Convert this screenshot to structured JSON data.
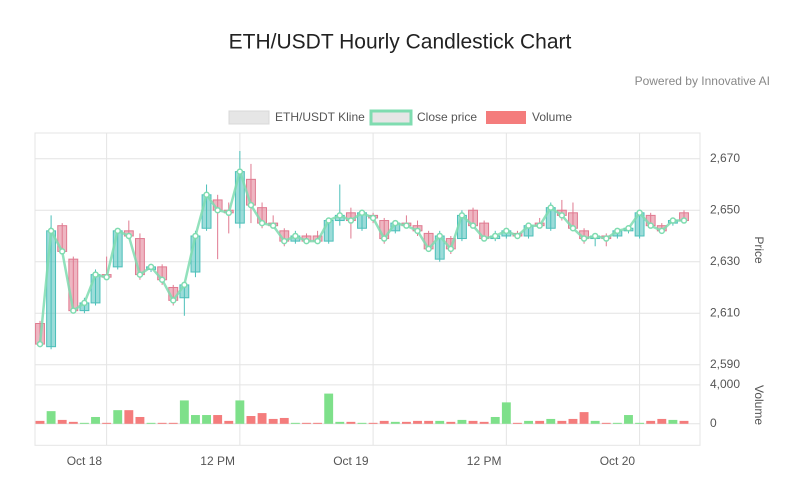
{
  "chart_data": {
    "type": "candlestick",
    "title": "ETH/USDT Hourly Candlestick Chart",
    "subtitle": "Powered by Innovative AI",
    "categories": [
      null,
      null,
      null,
      null,
      "Oct 18",
      null,
      null,
      null,
      null,
      null,
      null,
      null,
      null,
      null,
      null,
      null,
      "12 PM",
      null,
      null,
      null,
      null,
      null,
      null,
      null,
      null,
      null,
      null,
      null,
      "Oct 19",
      null,
      null,
      null,
      null,
      null,
      null,
      null,
      null,
      null,
      null,
      null,
      "12 PM",
      null,
      null,
      null,
      null,
      null,
      null,
      null,
      null,
      null,
      null,
      null,
      "Oct 20",
      null,
      null,
      null,
      null,
      null,
      null
    ],
    "ylim": [
      2586,
      2680
    ],
    "yticks": [
      {
        "value": 2590,
        "label": "2,590"
      },
      {
        "value": 2610,
        "label": "2,610"
      },
      {
        "value": 2630,
        "label": "2,630"
      },
      {
        "value": 2650,
        "label": "2,650"
      },
      {
        "value": 2670,
        "label": "2,670"
      }
    ],
    "ylabel": "Price",
    "y2lim": [
      -2000,
      4700
    ],
    "y2ticks": [
      0,
      {
        "value": 4000,
        "label": "4,000"
      }
    ],
    "y2label": "Volume",
    "grid": true,
    "series": [
      {
        "name": "ETH/USDT Kline",
        "up_color": "#4bbfb9",
        "down_color": "#e07a90",
        "open": [
          2606,
          2597,
          2644,
          2631,
          2611,
          2614,
          2625,
          2628,
          2642,
          2639,
          2627,
          2628,
          2620,
          2616,
          2626,
          2643,
          2654,
          2650,
          2645,
          2662,
          2651,
          2645,
          2642,
          2638,
          2640,
          2640,
          2638,
          2646,
          2649,
          2643,
          2648,
          2646,
          2642,
          2645,
          2644,
          2641,
          2631,
          2639,
          2639,
          2650,
          2645,
          2639,
          2640,
          2641,
          2640,
          2645,
          2643,
          2650,
          2649,
          2642,
          2639,
          2640,
          2640,
          2642,
          2640,
          2648,
          2644,
          2645,
          2649
        ],
        "close": [
          2598,
          2642,
          2634,
          2611,
          2614,
          2625,
          2624,
          2642,
          2640,
          2625,
          2628,
          2623,
          2615,
          2621,
          2640,
          2656,
          2650,
          2649,
          2665,
          2652,
          2645,
          2644,
          2638,
          2640,
          2638,
          2638,
          2646,
          2648,
          2646,
          2649,
          2647,
          2639,
          2645,
          2644,
          2642,
          2635,
          2640,
          2635,
          2648,
          2644,
          2639,
          2640,
          2642,
          2640,
          2644,
          2644,
          2651,
          2648,
          2643,
          2639,
          2640,
          2639,
          2642,
          2643,
          2649,
          2644,
          2642,
          2646,
          2646
        ],
        "high": [
          2607,
          2648,
          2645,
          2632,
          2616,
          2627,
          2632,
          2643,
          2646,
          2641,
          2629,
          2629,
          2621,
          2622,
          2642,
          2660,
          2656,
          2653,
          2673,
          2668,
          2653,
          2648,
          2643,
          2642,
          2641,
          2642,
          2647,
          2660,
          2651,
          2650,
          2649,
          2647,
          2646,
          2648,
          2646,
          2642,
          2642,
          2640,
          2650,
          2651,
          2646,
          2642,
          2643,
          2642,
          2645,
          2647,
          2653,
          2654,
          2653,
          2643,
          2641,
          2641,
          2643,
          2644,
          2650,
          2649,
          2645,
          2647,
          2650
        ],
        "low": [
          2597,
          2596,
          2633,
          2610,
          2610,
          2613,
          2623,
          2627,
          2639,
          2623,
          2626,
          2621,
          2613,
          2609,
          2624,
          2642,
          2631,
          2641,
          2643,
          2645,
          2643,
          2643,
          2636,
          2637,
          2637,
          2637,
          2637,
          2644,
          2639,
          2642,
          2645,
          2637,
          2641,
          2643,
          2640,
          2634,
          2630,
          2633,
          2638,
          2643,
          2638,
          2638,
          2639,
          2639,
          2639,
          2643,
          2642,
          2646,
          2642,
          2637,
          2636,
          2636,
          2639,
          2641,
          2639,
          2643,
          2641,
          2644,
          2645
        ]
      },
      {
        "name": "Close price",
        "color": "#7fdcb0"
      },
      {
        "name": "Volume",
        "axis": "y2",
        "up_color": "#7ee08a",
        "down_color": "#f47c7c",
        "values": [
          300,
          1300,
          400,
          200,
          100,
          700,
          100,
          1400,
          1400,
          700,
          100,
          100,
          100,
          2400,
          900,
          900,
          900,
          300,
          2400,
          800,
          1100,
          500,
          600,
          100,
          100,
          100,
          3100,
          200,
          200,
          100,
          100,
          300,
          200,
          200,
          300,
          300,
          300,
          200,
          400,
          300,
          200,
          700,
          2200,
          100,
          300,
          300,
          500,
          300,
          500,
          1200,
          300,
          100,
          100,
          900,
          100,
          300,
          500,
          400,
          300
        ]
      }
    ]
  }
}
